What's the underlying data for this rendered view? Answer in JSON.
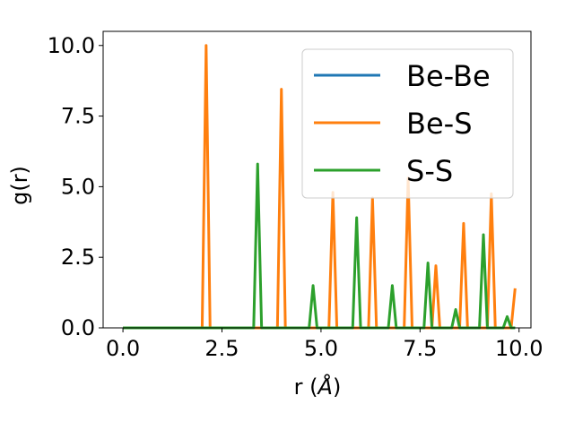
{
  "chart_data": {
    "type": "line",
    "xlabel": "r (Å)",
    "ylabel": "g(r)",
    "xlim": [
      -0.5,
      10.3
    ],
    "ylim": [
      0,
      10.5
    ],
    "xticks": [
      "0.0",
      "2.5",
      "5.0",
      "7.5",
      "10.0"
    ],
    "yticks": [
      "0.0",
      "2.5",
      "5.0",
      "7.5",
      "10.0"
    ],
    "legend_position": "top-right",
    "series": [
      {
        "name": "Be-Be",
        "color": "#1f77b4",
        "points": [
          [
            0.0,
            0.0
          ],
          [
            9.9,
            0.0
          ]
        ]
      },
      {
        "name": "Be-S",
        "color": "#ff7f0e",
        "points": [
          [
            0.0,
            0.0
          ],
          [
            2.0,
            0.0
          ],
          [
            2.1,
            10.0
          ],
          [
            2.2,
            0.0
          ],
          [
            3.9,
            0.0
          ],
          [
            4.0,
            8.45
          ],
          [
            4.1,
            0.0
          ],
          [
            5.2,
            0.0
          ],
          [
            5.3,
            4.8
          ],
          [
            5.4,
            0.0
          ],
          [
            6.2,
            0.0
          ],
          [
            6.3,
            4.6
          ],
          [
            6.4,
            0.0
          ],
          [
            7.1,
            0.0
          ],
          [
            7.2,
            5.3
          ],
          [
            7.3,
            0.0
          ],
          [
            7.8,
            0.0
          ],
          [
            7.9,
            2.2
          ],
          [
            8.0,
            0.0
          ],
          [
            8.5,
            0.0
          ],
          [
            8.6,
            3.7
          ],
          [
            8.7,
            0.0
          ],
          [
            9.2,
            0.0
          ],
          [
            9.3,
            4.75
          ],
          [
            9.4,
            0.0
          ],
          [
            9.8,
            0.0
          ],
          [
            9.9,
            1.4
          ]
        ]
      },
      {
        "name": "S-S",
        "color": "#2ca02c",
        "points": [
          [
            0.0,
            0.0
          ],
          [
            3.3,
            0.0
          ],
          [
            3.4,
            5.8
          ],
          [
            3.5,
            0.0
          ],
          [
            4.7,
            0.0
          ],
          [
            4.8,
            1.5
          ],
          [
            4.9,
            0.0
          ],
          [
            5.8,
            0.0
          ],
          [
            5.9,
            3.9
          ],
          [
            6.0,
            0.0
          ],
          [
            6.7,
            0.0
          ],
          [
            6.8,
            1.5
          ],
          [
            6.9,
            0.0
          ],
          [
            7.6,
            0.0
          ],
          [
            7.7,
            2.3
          ],
          [
            7.8,
            0.0
          ],
          [
            8.3,
            0.0
          ],
          [
            8.4,
            0.65
          ],
          [
            8.5,
            0.0
          ],
          [
            9.0,
            0.0
          ],
          [
            9.1,
            3.3
          ],
          [
            9.2,
            0.0
          ],
          [
            9.6,
            0.0
          ],
          [
            9.7,
            0.4
          ],
          [
            9.8,
            0.0
          ],
          [
            9.9,
            0.0
          ]
        ]
      }
    ]
  }
}
